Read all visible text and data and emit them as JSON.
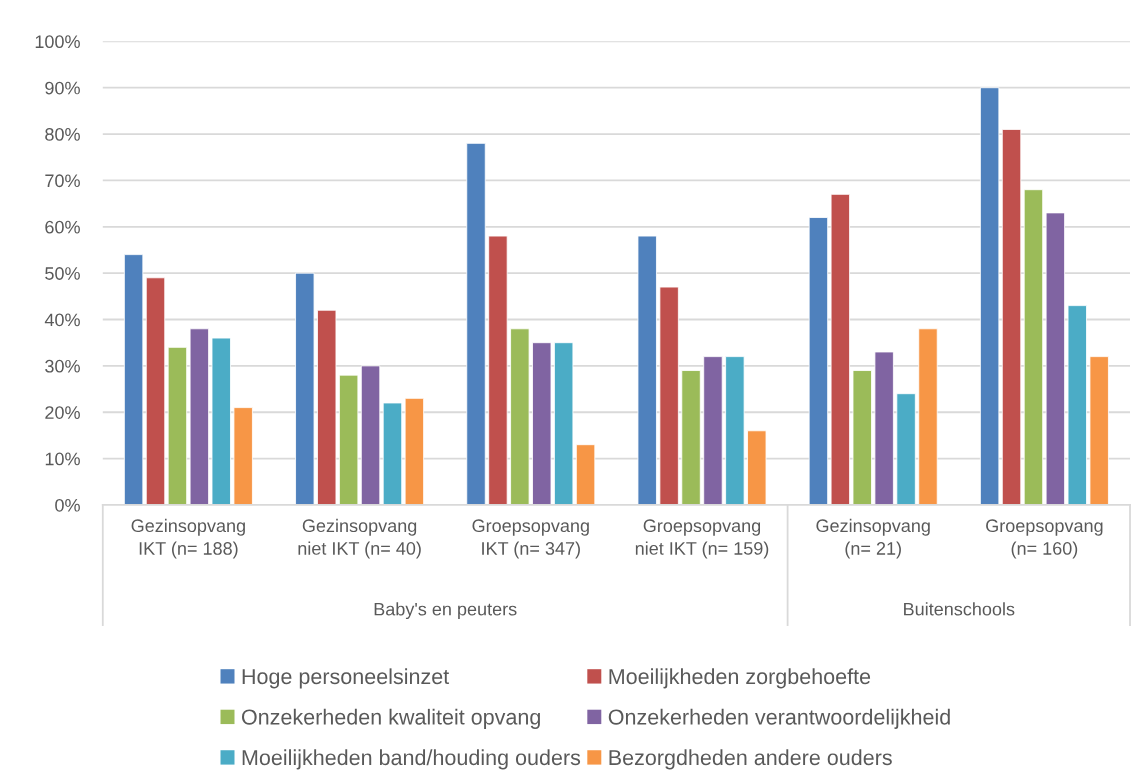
{
  "chart_data": {
    "type": "bar",
    "categories": [
      "Gezinsopvang\nIKT (n= 188)",
      "Gezinsopvang\nniet IKT (n= 40)",
      "Groepsopvang\nIKT (n= 347)",
      "Groepsopvang\nniet IKT (n= 159)",
      "Gezinsopvang\n(n= 21)",
      "Groepsopvang\n(n= 160)"
    ],
    "series": [
      {
        "name": "Hoge personeelsinzet",
        "color": "#4f81bd",
        "values": [
          54,
          50,
          78,
          58,
          62,
          90
        ]
      },
      {
        "name": "Moeilijkheden zorgbehoefte",
        "color": "#c0504d",
        "values": [
          49,
          42,
          58,
          47,
          67,
          81
        ]
      },
      {
        "name": "Onzekerheden kwaliteit opvang",
        "color": "#9bbb59",
        "values": [
          34,
          28,
          38,
          29,
          29,
          68
        ]
      },
      {
        "name": "Onzekerheden verantwoordelijkheid",
        "color": "#8064a2",
        "values": [
          38,
          30,
          35,
          32,
          33,
          63
        ]
      },
      {
        "name": "Moeilijkheden band/houding ouders",
        "color": "#4bacc6",
        "values": [
          36,
          22,
          35,
          32,
          24,
          43
        ]
      },
      {
        "name": "Bezorgdheden andere ouders",
        "color": "#f79646",
        "values": [
          21,
          23,
          13,
          16,
          38,
          32
        ]
      }
    ],
    "ylim": [
      0,
      100
    ],
    "yticks": [
      {
        "value": 0,
        "label": "0%"
      },
      {
        "value": 10,
        "label": "10%"
      },
      {
        "value": 20,
        "label": "20%"
      },
      {
        "value": 30,
        "label": "30%"
      },
      {
        "value": 40,
        "label": "40%"
      },
      {
        "value": 50,
        "label": "50%"
      },
      {
        "value": 60,
        "label": "60%"
      },
      {
        "value": 70,
        "label": "70%"
      },
      {
        "value": 80,
        "label": "80%"
      },
      {
        "value": 90,
        "label": "90%"
      },
      {
        "value": 100,
        "label": "100%"
      }
    ],
    "grid": "y",
    "legend": "bottom",
    "annotations": [
      "Baby's en peuters",
      "Buitenschools"
    ]
  }
}
